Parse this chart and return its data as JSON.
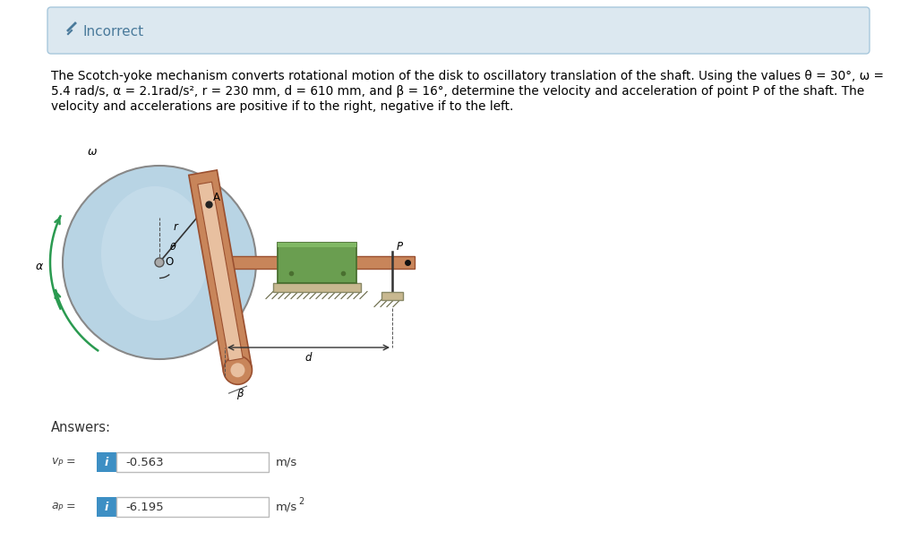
{
  "bg_color": "#ffffff",
  "header_bg": "#dce8f0",
  "header_border": "#a8c8dc",
  "header_text": "Incorrect",
  "header_icon_color": "#4a7a9b",
  "body_line1": "The Scotch-yoke mechanism converts rotational motion of the disk to oscillatory translation of the shaft. Using the values θ = 30°, ω =",
  "body_line2": "5.4 rad/s, α = 2.1rad/s², r = 230 mm, d = 610 mm, and β = 16°, determine the velocity and acceleration of point P of the shaft. The",
  "body_line3": "velocity and accelerations are positive if to the right, negative if to the left.",
  "answers_label": "Answers:",
  "vp_value": "-0.563",
  "vp_unit": "m/s",
  "ap_value": "-6.195",
  "ap_unit": "m/s²",
  "input_bg": "#ffffff",
  "input_border": "#bbbbbb",
  "input_text_color": "#333333",
  "blue_btn_color": "#3d8fc4",
  "label_color": "#444444",
  "disk_color": "#b8d4e4",
  "disk_edge": "#888888",
  "disk_inner_color": "#cce0ee",
  "yoke_color": "#c8855a",
  "yoke_edge": "#9a5030",
  "shaft_color": "#c8855a",
  "shaft_edge": "#9a5030",
  "green_block_color": "#6a9e50",
  "green_block_edge": "#4a7030",
  "base_color": "#c8b890",
  "omega_color": "#2a9a50",
  "alpha_color": "#2a9a50",
  "arrow_color": "#333333"
}
